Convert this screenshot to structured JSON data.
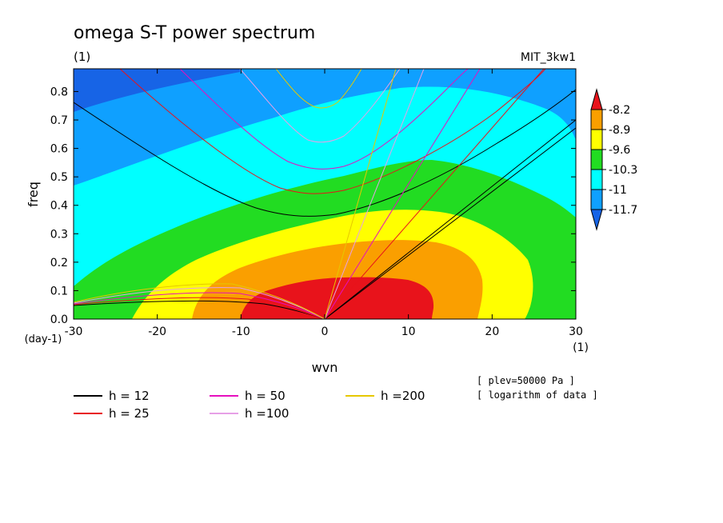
{
  "chart_data": {
    "type": "heatmap",
    "title": "omega S-T power spectrum",
    "subtitle_left": "(1)",
    "subtitle_right": "MIT_3kw1",
    "xlabel": "wvn",
    "ylabel": "freq",
    "x_unit": "(1)",
    "y_unit": "(day-1)",
    "xlim": [
      -30,
      30
    ],
    "ylim": [
      0,
      0.88
    ],
    "x_ticks": [
      -30,
      -20,
      -10,
      0,
      10,
      20,
      30
    ],
    "y_ticks": [
      0.0,
      0.1,
      0.2,
      0.3,
      0.4,
      0.5,
      0.6,
      0.7,
      0.8
    ],
    "colorbar": {
      "levels": [
        "-8.2",
        "-8.9",
        "-9.6",
        "-10.3",
        "-11",
        "-11.7"
      ],
      "colors": [
        "#e8131b",
        "#fa9f00",
        "#ffff00",
        "#22dc22",
        "#00ffff",
        "#0fa0ff",
        "#1764e6"
      ]
    },
    "dispersion_legend": [
      {
        "label": "h = 12",
        "color": "#000000"
      },
      {
        "label": "h = 25",
        "color": "#e8131b"
      },
      {
        "label": "h = 50",
        "color": "#e60fbe"
      },
      {
        "label": "h =100",
        "color": "#e6a0e6"
      },
      {
        "label": "h =200",
        "color": "#e6c800"
      }
    ],
    "notes": [
      "[ plev=50000 Pa ]",
      "[ logarithm of data ]"
    ]
  }
}
